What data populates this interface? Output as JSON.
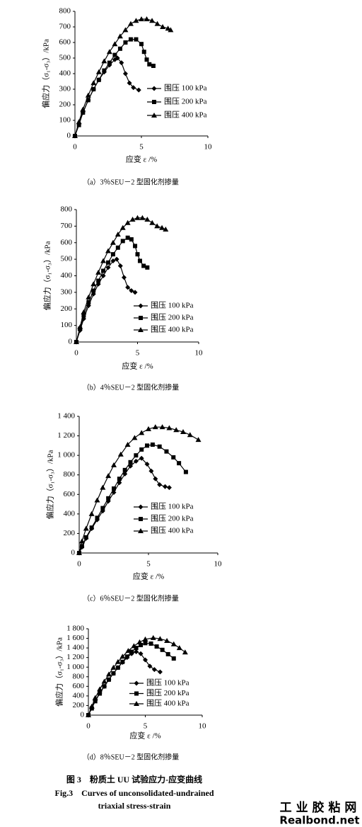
{
  "chart_data": [
    {
      "type": "line",
      "caption": "（a）3％SEU－2 型固化剂掺量",
      "xlabel": "应变 ε /%",
      "ylabel": "偏应力（σ₁-σ₃）/kPa",
      "xlim": [
        0,
        10
      ],
      "xticks": [
        0,
        5,
        10
      ],
      "ylim": [
        0,
        800
      ],
      "yticks": [
        0,
        100,
        200,
        300,
        400,
        500,
        600,
        700,
        800
      ],
      "series": [
        {
          "name": "围压 100 kPa",
          "color": "#000000",
          "marker": "diamond",
          "x": [
            0,
            0.3,
            0.6,
            1.0,
            1.4,
            1.8,
            2.2,
            2.6,
            3.0,
            3.2,
            3.5,
            3.8,
            4.1,
            4.4,
            4.8
          ],
          "values": [
            0,
            80,
            150,
            230,
            300,
            360,
            410,
            455,
            490,
            500,
            470,
            400,
            340,
            310,
            295
          ]
        },
        {
          "name": "围压 200 kPa",
          "color": "#000000",
          "marker": "square",
          "x": [
            0,
            0.3,
            0.6,
            1.0,
            1.4,
            1.8,
            2.2,
            2.6,
            3.0,
            3.4,
            3.8,
            4.2,
            4.6,
            5.0,
            5.2,
            5.4,
            5.6,
            5.9
          ],
          "values": [
            0,
            70,
            150,
            230,
            300,
            360,
            420,
            470,
            520,
            560,
            600,
            620,
            620,
            590,
            540,
            490,
            460,
            450
          ]
        },
        {
          "name": "围压 400 kPa",
          "color": "#000000",
          "marker": "triangle",
          "x": [
            0,
            0.3,
            0.6,
            1.0,
            1.4,
            1.8,
            2.2,
            2.6,
            3.0,
            3.4,
            3.8,
            4.2,
            4.6,
            5.0,
            5.4,
            5.8,
            6.2,
            6.6,
            7.0,
            7.2
          ],
          "values": [
            0,
            90,
            170,
            260,
            340,
            410,
            480,
            540,
            590,
            640,
            680,
            720,
            740,
            750,
            750,
            740,
            720,
            700,
            690,
            680
          ]
        }
      ]
    },
    {
      "type": "line",
      "caption": "（b）4％SEU－2 型固化剂掺量",
      "xlabel": "应变 ε /%",
      "ylabel": "偏应力（σ₁-σ₃）/kPa",
      "xlim": [
        0,
        10
      ],
      "xticks": [
        0,
        5,
        10
      ],
      "ylim": [
        0,
        800
      ],
      "yticks": [
        0,
        100,
        200,
        300,
        400,
        500,
        600,
        700,
        800
      ],
      "series": [
        {
          "name": "围压 100 kPa",
          "color": "#000000",
          "marker": "diamond",
          "x": [
            0,
            0.3,
            0.6,
            1.0,
            1.4,
            1.8,
            2.2,
            2.6,
            3.0,
            3.3,
            3.6,
            3.9,
            4.2,
            4.5,
            4.8
          ],
          "values": [
            0,
            70,
            140,
            220,
            290,
            350,
            400,
            450,
            490,
            500,
            460,
            390,
            330,
            310,
            300
          ]
        },
        {
          "name": "围压 200 kPa",
          "color": "#000000",
          "marker": "square",
          "x": [
            0,
            0.3,
            0.6,
            1.0,
            1.4,
            1.8,
            2.2,
            2.6,
            3.0,
            3.4,
            3.8,
            4.2,
            4.5,
            4.8,
            5.0,
            5.2,
            5.5,
            5.8
          ],
          "values": [
            0,
            80,
            160,
            240,
            310,
            370,
            430,
            480,
            530,
            570,
            610,
            630,
            620,
            580,
            530,
            490,
            460,
            450
          ]
        },
        {
          "name": "围压 400 kPa",
          "color": "#000000",
          "marker": "triangle",
          "x": [
            0,
            0.3,
            0.6,
            1.0,
            1.4,
            1.8,
            2.2,
            2.6,
            3.0,
            3.4,
            3.8,
            4.2,
            4.6,
            5.0,
            5.4,
            5.8,
            6.2,
            6.6,
            7.0,
            7.3
          ],
          "values": [
            0,
            90,
            180,
            270,
            350,
            420,
            490,
            550,
            600,
            650,
            690,
            720,
            740,
            750,
            750,
            740,
            720,
            700,
            690,
            680
          ]
        }
      ]
    },
    {
      "type": "line",
      "caption": "（c）6％SEU－2 型固化剂掺量",
      "xlabel": "应变 ε /%",
      "ylabel": "偏应力（σ₁-σ₃）/kPa",
      "xlim": [
        0,
        10
      ],
      "xticks": [
        0,
        5,
        10
      ],
      "ylim": [
        0,
        1400
      ],
      "yticks": [
        0,
        200,
        400,
        600,
        800,
        {
          "value": 1000,
          "label": "1 000"
        },
        {
          "value": 1200,
          "label": "1 200"
        },
        {
          "value": 1400,
          "label": "1 400"
        }
      ],
      "series": [
        {
          "name": "围压 100 kPa",
          "color": "#000000",
          "marker": "diamond",
          "x": [
            0,
            0.2,
            0.5,
            0.9,
            1.3,
            1.7,
            2.1,
            2.5,
            2.9,
            3.3,
            3.7,
            4.1,
            4.5,
            4.9,
            5.2,
            5.5,
            5.8,
            6.2,
            6.5
          ],
          "values": [
            0,
            60,
            150,
            250,
            340,
            430,
            530,
            620,
            720,
            810,
            890,
            940,
            970,
            910,
            840,
            760,
            700,
            680,
            670
          ]
        },
        {
          "name": "围压 200 kPa",
          "color": "#000000",
          "marker": "square",
          "x": [
            0,
            0.2,
            0.5,
            0.9,
            1.3,
            1.7,
            2.1,
            2.5,
            2.9,
            3.3,
            3.7,
            4.1,
            4.5,
            4.9,
            5.3,
            5.8,
            6.3,
            6.8,
            7.2,
            7.7
          ],
          "values": [
            0,
            70,
            160,
            260,
            360,
            460,
            560,
            660,
            760,
            850,
            930,
            1000,
            1060,
            1100,
            1110,
            1090,
            1040,
            980,
            920,
            830
          ]
        },
        {
          "name": "围压 400 kPa",
          "color": "#000000",
          "marker": "triangle",
          "x": [
            0,
            0.2,
            0.5,
            0.9,
            1.3,
            1.7,
            2.1,
            2.5,
            3.0,
            3.5,
            4.0,
            4.5,
            5.0,
            5.5,
            6.0,
            6.5,
            7.0,
            7.5,
            8.0,
            8.6
          ],
          "values": [
            0,
            120,
            250,
            400,
            540,
            670,
            790,
            900,
            1010,
            1110,
            1180,
            1230,
            1270,
            1290,
            1290,
            1280,
            1260,
            1240,
            1210,
            1160
          ]
        }
      ]
    },
    {
      "type": "line",
      "caption": "（d）8％SEU－2 型固化剂掺量",
      "xlabel": "应变 ε /%",
      "ylabel": "偏应力（σ₁-σ₃）/kPa",
      "xlim": [
        0,
        10
      ],
      "xticks": [
        0,
        5,
        10
      ],
      "ylim": [
        0,
        1800
      ],
      "yticks": [
        0,
        200,
        400,
        600,
        800,
        {
          "value": 1000,
          "label": "1 000"
        },
        {
          "value": 1200,
          "label": "1 200"
        },
        {
          "value": 1400,
          "label": "1 400"
        },
        {
          "value": 1600,
          "label": "1 600"
        },
        {
          "value": 1800,
          "label": "1 800"
        }
      ],
      "series": [
        {
          "name": "围压 100 kPa",
          "color": "#000000",
          "marker": "diamond",
          "x": [
            0,
            0.3,
            0.6,
            1.0,
            1.4,
            1.8,
            2.2,
            2.6,
            3.0,
            3.4,
            3.8,
            4.2,
            4.6,
            5.0,
            5.4,
            5.8,
            6.3
          ],
          "values": [
            0,
            150,
            300,
            460,
            600,
            740,
            870,
            990,
            1100,
            1200,
            1280,
            1320,
            1280,
            1150,
            1020,
            950,
            900
          ]
        },
        {
          "name": "围压 200 kPa",
          "color": "#000000",
          "marker": "square",
          "x": [
            0,
            0.3,
            0.6,
            1.0,
            1.4,
            1.8,
            2.2,
            2.6,
            3.0,
            3.4,
            3.8,
            4.2,
            4.6,
            5.0,
            5.5,
            6.0,
            6.5,
            7.0,
            7.5
          ],
          "values": [
            0,
            140,
            290,
            450,
            600,
            740,
            870,
            990,
            1110,
            1220,
            1320,
            1400,
            1460,
            1500,
            1490,
            1430,
            1360,
            1270,
            1180
          ]
        },
        {
          "name": "围压 400 kPa",
          "color": "#000000",
          "marker": "triangle",
          "x": [
            0,
            0.3,
            0.6,
            1.0,
            1.4,
            1.8,
            2.2,
            2.6,
            3.0,
            3.5,
            4.0,
            4.5,
            5.0,
            5.7,
            6.3,
            6.9,
            7.5,
            8.0,
            8.5
          ],
          "values": [
            0,
            180,
            360,
            540,
            700,
            850,
            990,
            1110,
            1220,
            1340,
            1440,
            1520,
            1580,
            1610,
            1590,
            1550,
            1480,
            1400,
            1310
          ]
        }
      ]
    }
  ],
  "figure": {
    "caption_cn": "图 3　粉质土 UU 试验应力-应变曲线",
    "caption_en_1": "Fig.3　Curves of unconsolidated-undrained",
    "caption_en_2": "triaxial stress-strain"
  },
  "watermark": {
    "cn": "工 业 胶 粘 网",
    "en": "Realbond.net"
  }
}
